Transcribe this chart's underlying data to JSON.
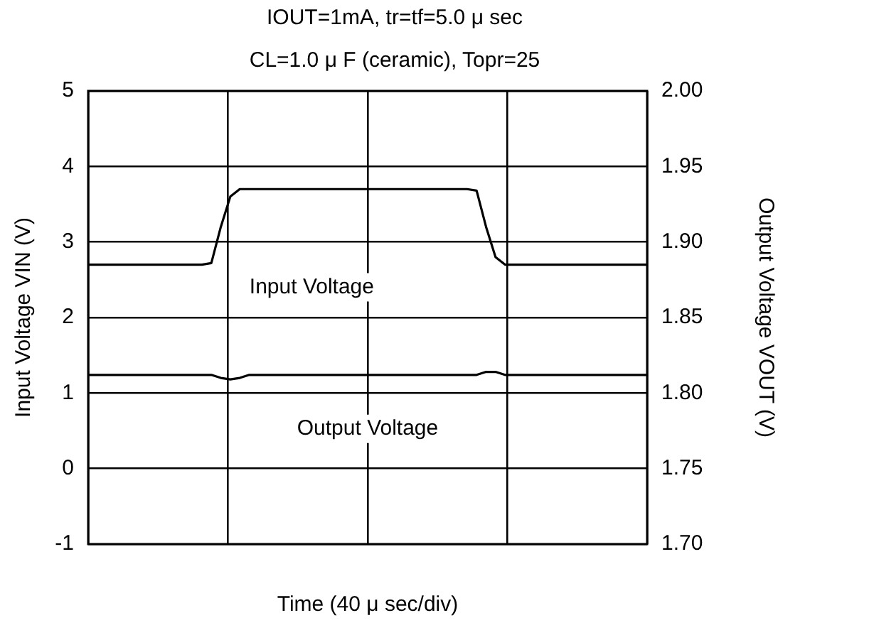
{
  "chart_data": {
    "type": "line",
    "title": "IOUT=1mA, tr=tf=5.0 μ sec",
    "subtitle": "CL=1.0 μ F (ceramic), Topr=25",
    "xlabel": "Time (40 μ sec/div)",
    "ylabel": "Input Voltage VIN (V)",
    "y2label": "Output Voltage VOUT (V)",
    "categories": [
      null,
      null,
      null,
      null,
      null,
      null,
      null,
      null,
      null,
      null,
      null,
      null,
      null,
      null,
      null,
      null,
      null,
      null,
      null,
      null,
      null,
      null,
      null,
      null,
      null,
      null,
      null,
      null,
      null,
      null,
      null,
      null,
      null,
      null,
      null,
      null,
      null,
      null,
      null,
      null,
      null,
      null,
      null,
      null,
      null,
      null,
      null,
      null,
      null,
      null,
      null,
      null,
      null,
      null,
      null,
      null,
      null,
      null,
      null,
      null
    ],
    "series": [
      {
        "name": "Input Voltage",
        "color": "#000000",
        "values": [
          2.7,
          2.7,
          2.7,
          2.7,
          2.7,
          2.7,
          2.7,
          2.7,
          2.7,
          2.7,
          2.7,
          2.7,
          2.7,
          2.72,
          3.2,
          3.6,
          3.7,
          3.7,
          3.7,
          3.7,
          3.7,
          3.7,
          3.7,
          3.7,
          3.7,
          3.7,
          3.7,
          3.7,
          3.7,
          3.7,
          3.7,
          3.7,
          3.7,
          3.7,
          3.7,
          3.7,
          3.7,
          3.7,
          3.7,
          3.7,
          3.7,
          3.68,
          3.2,
          2.8,
          2.7,
          2.7,
          2.7,
          2.7,
          2.7,
          2.7,
          2.7,
          2.7,
          2.7,
          2.7,
          2.7,
          2.7,
          2.7,
          2.7,
          2.7,
          2.7
        ]
      },
      {
        "name": "Output Voltage",
        "color": "#000000",
        "axis": "y2",
        "values": [
          1.812,
          1.812,
          1.812,
          1.812,
          1.812,
          1.812,
          1.812,
          1.812,
          1.812,
          1.812,
          1.812,
          1.812,
          1.812,
          1.812,
          1.81,
          1.809,
          1.81,
          1.812,
          1.812,
          1.812,
          1.812,
          1.812,
          1.812,
          1.812,
          1.812,
          1.812,
          1.812,
          1.812,
          1.812,
          1.812,
          1.812,
          1.812,
          1.812,
          1.812,
          1.812,
          1.812,
          1.812,
          1.812,
          1.812,
          1.812,
          1.812,
          1.812,
          1.814,
          1.814,
          1.812,
          1.812,
          1.812,
          1.812,
          1.812,
          1.812,
          1.812,
          1.812,
          1.812,
          1.812,
          1.812,
          1.812,
          1.812,
          1.812,
          1.812,
          1.812
        ]
      }
    ],
    "ylim": [
      -1,
      5
    ],
    "yticks": [
      -1,
      0,
      1,
      2,
      3,
      4,
      5
    ],
    "y2lim": [
      1.7,
      2.0
    ],
    "y2ticks": [
      {
        "value": 1.7,
        "label": "1.70"
      },
      1.75,
      {
        "value": 1.8,
        "label": "1.80"
      },
      1.85,
      {
        "value": 1.9,
        "label": "1.90"
      },
      1.95,
      {
        "value": 2.0,
        "label": "2.00"
      }
    ],
    "grid": true,
    "legend": false,
    "marker": "none",
    "line_style": "solid"
  }
}
